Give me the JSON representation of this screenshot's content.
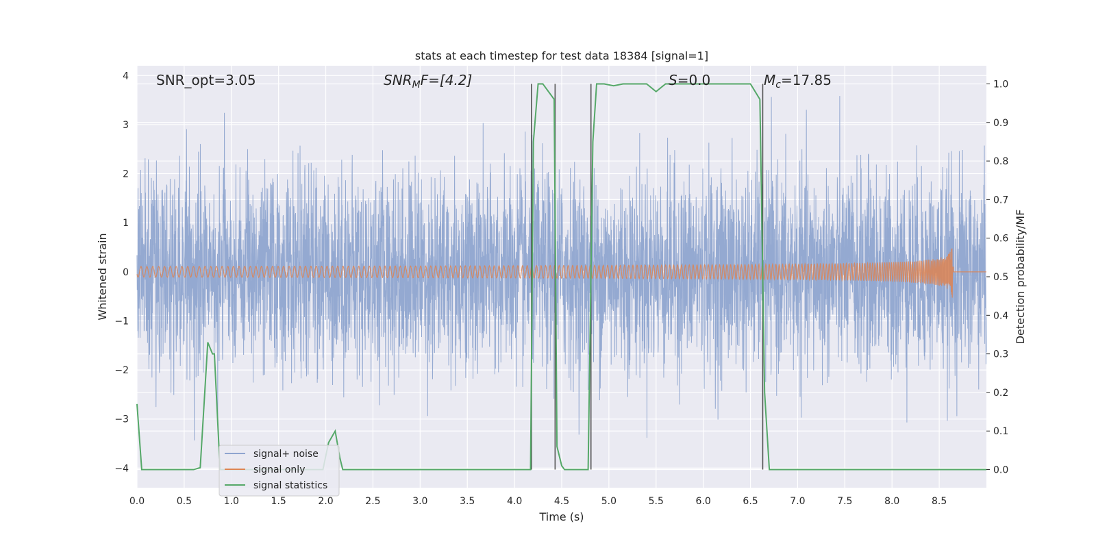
{
  "chart_data": {
    "type": "line",
    "title": "stats at each timestep for test data 18384 [signal=1]",
    "xlabel": "Time (s)",
    "ylabel": "Whitened strain",
    "y2label": "Detection probability/MF",
    "xlim": [
      0,
      9.0
    ],
    "ylim": [
      -4.4,
      4.2
    ],
    "y2lim": [
      -0.047,
      1.047
    ],
    "xticks": [
      "0.0",
      "0.5",
      "1.0",
      "1.5",
      "2.0",
      "2.5",
      "3.0",
      "3.5",
      "4.0",
      "4.5",
      "5.0",
      "5.5",
      "6.0",
      "6.5",
      "7.0",
      "7.5",
      "8.0",
      "8.5"
    ],
    "yticks": [
      "4",
      "3",
      "2",
      "1",
      "0",
      "−1",
      "−2",
      "−3",
      "−4"
    ],
    "y2ticks": [
      "1.0",
      "0.9",
      "0.8",
      "0.7",
      "0.6",
      "0.5",
      "0.4",
      "0.3",
      "0.2",
      "0.1",
      "0.0"
    ],
    "grid": true,
    "legend_placement": "lower-left",
    "annotations": {
      "snr_opt": "SNR_opt=3.05",
      "snr_mf_base": "SNR",
      "snr_mf_sub": "M",
      "snr_mf_rest": "F=[4.2]",
      "s_italic": "S",
      "s_rest": "=0.0",
      "mc_base": "M",
      "mc_sub": "c",
      "mc_rest": "=17.85"
    },
    "vertical_lines": [
      4.18,
      4.43,
      4.81,
      6.63
    ],
    "series": [
      {
        "name": "signal+ noise",
        "color": "#8fa5cf",
        "axis": "left",
        "noise_sigma": 1.0,
        "noise_envelope": 4.0
      },
      {
        "name": "signal only",
        "color": "#dd8452",
        "axis": "left",
        "chirp_end": 8.65,
        "chirp_amp": 0.6
      },
      {
        "name": "signal statistics",
        "color": "#55a868",
        "axis": "right",
        "x": [
          0.0,
          0.05,
          0.1,
          0.2,
          0.6,
          0.67,
          0.75,
          0.8,
          0.82,
          0.88,
          1.0,
          1.9,
          1.97,
          2.03,
          2.1,
          2.15,
          2.18,
          2.23,
          2.3,
          4.0,
          4.12,
          4.17,
          4.2,
          4.25,
          4.3,
          4.42,
          4.45,
          4.5,
          4.53,
          4.58,
          4.6,
          4.7,
          4.78,
          4.83,
          4.87,
          4.95,
          5.05,
          5.15,
          5.4,
          5.5,
          5.6,
          5.75,
          6.5,
          6.6,
          6.65,
          6.7,
          6.78,
          6.85,
          9.0
        ],
        "y": [
          0.17,
          0.0,
          0.0,
          0.0,
          0.0,
          0.005,
          0.33,
          0.3,
          0.3,
          0.0,
          0.0,
          0.0,
          0.0,
          0.07,
          0.1,
          0.03,
          0.0,
          0.0,
          0.0,
          0.0,
          0.0,
          0.0,
          0.85,
          1.0,
          1.0,
          0.96,
          0.06,
          0.01,
          0.0,
          0.0,
          0.0,
          0.0,
          0.0,
          0.85,
          1.0,
          1.0,
          0.995,
          1.0,
          1.0,
          0.98,
          1.0,
          1.0,
          1.0,
          0.96,
          0.2,
          0.0,
          0.0,
          0.0,
          0.0
        ]
      }
    ]
  }
}
